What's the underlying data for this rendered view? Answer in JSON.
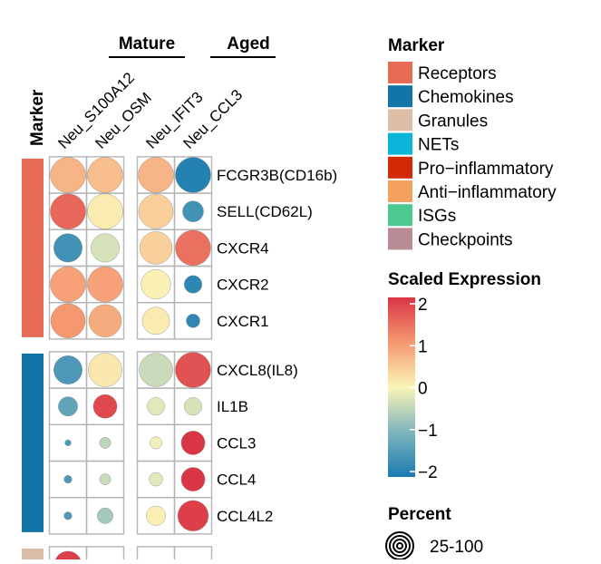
{
  "chart_data": {
    "type": "heatmap",
    "subtype": "dot-plot",
    "y_axis_title": "Marker",
    "column_groups": [
      {
        "label": "Mature",
        "columns": [
          "Neu_S100A12",
          "Neu_OSM"
        ]
      },
      {
        "label": "Aged",
        "columns": [
          "Neu_IFIT3",
          "Neu_CCL3"
        ]
      }
    ],
    "columns": [
      "Neu_S100A12",
      "Neu_OSM",
      "Neu_IFIT3",
      "Neu_CCL3"
    ],
    "rows": [
      {
        "gene": "FCGR3B(CD16b)",
        "category": "Receptors",
        "expression": [
          0.7,
          0.6,
          0.7,
          -1.9
        ],
        "percent": [
          100,
          100,
          100,
          100
        ]
      },
      {
        "gene": "SELL(CD62L)",
        "category": "Receptors",
        "expression": [
          1.5,
          0.1,
          0.4,
          -1.6
        ],
        "percent": [
          100,
          100,
          95,
          35
        ]
      },
      {
        "gene": "CXCR4",
        "category": "Receptors",
        "expression": [
          -1.6,
          -0.3,
          0.4,
          1.4
        ],
        "percent": [
          65,
          65,
          85,
          100
        ]
      },
      {
        "gene": "CXCR2",
        "category": "Receptors",
        "expression": [
          0.9,
          0.9,
          0.05,
          -1.8
        ],
        "percent": [
          100,
          100,
          70,
          25
        ]
      },
      {
        "gene": "CXCR1",
        "category": "Receptors",
        "expression": [
          1.0,
          0.8,
          0.1,
          -1.8
        ],
        "percent": [
          95,
          85,
          60,
          15
        ]
      },
      {
        "gene": "CXCL8(IL8)",
        "category": "Chemokines",
        "expression": [
          -1.5,
          0.15,
          -0.4,
          1.7
        ],
        "percent": [
          65,
          90,
          90,
          100
        ]
      },
      {
        "gene": "IL1B",
        "category": "Chemokines",
        "expression": [
          -1.3,
          1.8,
          -0.2,
          -0.3
        ],
        "percent": [
          30,
          45,
          25,
          25
        ]
      },
      {
        "gene": "CCL3",
        "category": "Chemokines",
        "expression": [
          -1.5,
          -0.5,
          -0.1,
          2.0
        ],
        "percent": [
          3,
          10,
          12,
          45
        ]
      },
      {
        "gene": "CCL4",
        "category": "Chemokines",
        "expression": [
          -1.5,
          -0.4,
          -0.2,
          2.0
        ],
        "percent": [
          5,
          10,
          15,
          45
        ]
      },
      {
        "gene": "CCL4L2",
        "category": "Chemokines",
        "expression": [
          -1.5,
          -0.7,
          0.05,
          1.9
        ],
        "percent": [
          5,
          20,
          30,
          75
        ]
      },
      {
        "gene": "",
        "category": "Granules",
        "expression": [
          1.9,
          null,
          null,
          null
        ],
        "percent": [
          60,
          0,
          0,
          0
        ]
      }
    ],
    "marker_legend": {
      "title": "Marker",
      "items": [
        {
          "label": "Receptors",
          "color": "#e56b55"
        },
        {
          "label": "Chemokines",
          "color": "#1374a8"
        },
        {
          "label": "Granules",
          "color": "#dcbea6"
        },
        {
          "label": "NETs",
          "color": "#0ab5d8"
        },
        {
          "label": "Pro−inflammatory",
          "color": "#d22a07"
        },
        {
          "label": "Anti−inflammatory",
          "color": "#f2a15e"
        },
        {
          "label": "ISGs",
          "color": "#4cc98e"
        },
        {
          "label": "Checkpoints",
          "color": "#b98b95"
        }
      ]
    },
    "color_scale": {
      "title": "Scaled Expression",
      "min": -2,
      "max": 2,
      "ticks": [
        "2",
        "1",
        "0",
        "−1",
        "−2"
      ],
      "stops": [
        "#d93545",
        "#f59870",
        "#fbf5b8",
        "#7fb5be",
        "#1a7bb0"
      ]
    },
    "size_legend": {
      "title": "Percent",
      "items": [
        "25-100"
      ]
    }
  }
}
